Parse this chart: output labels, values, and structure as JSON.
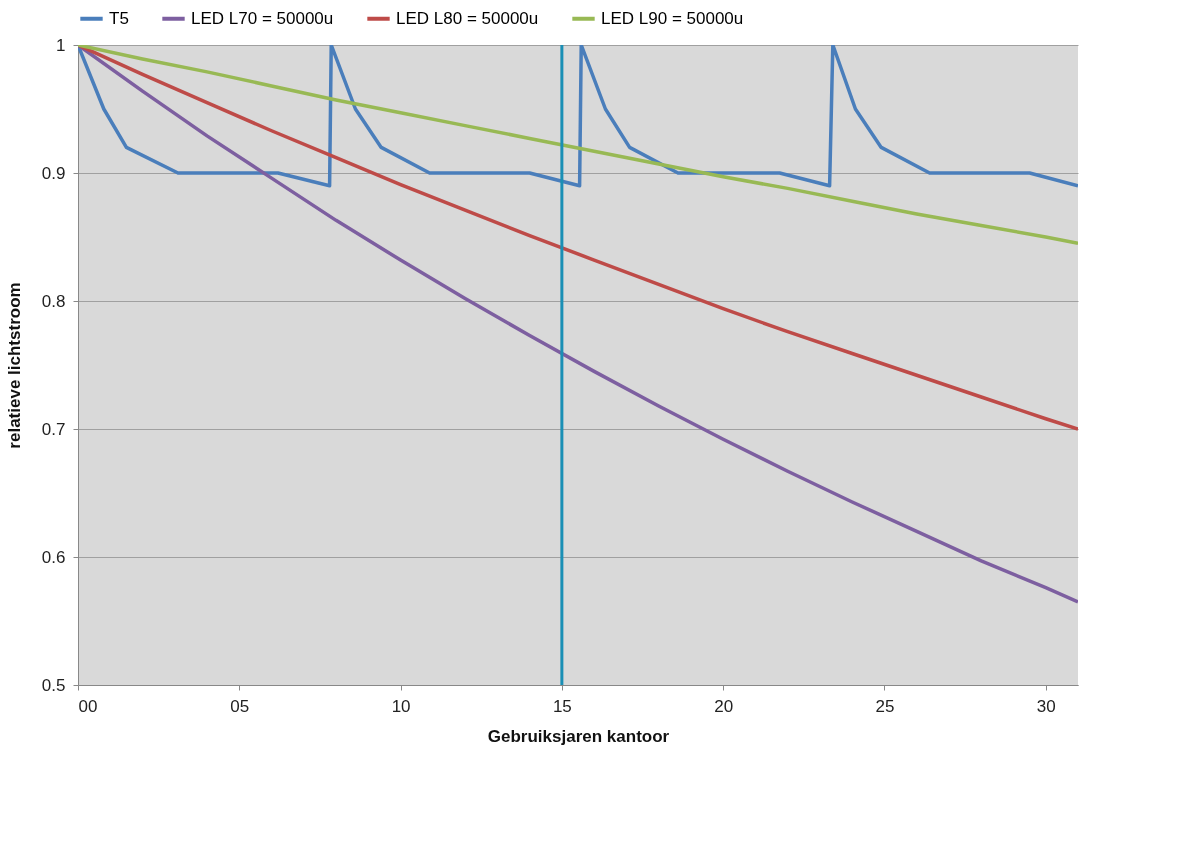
{
  "chart_data": {
    "type": "line",
    "xlabel": "Gebruiksjaren kantoor",
    "ylabel": "relatieve lichtstroom",
    "xlim": [
      0,
      31
    ],
    "ylim": [
      0.5,
      1
    ],
    "xticks": [
      {
        "value": 0,
        "label": "00"
      },
      {
        "value": 5,
        "label": "05"
      },
      10,
      15,
      20,
      25,
      30
    ],
    "yticks": [
      0.5,
      0.6,
      0.7,
      0.8,
      0.9,
      1
    ],
    "grid": "y",
    "legend": "top",
    "marker": "none",
    "line_style": "solid",
    "ref_lines": [
      {
        "axis": "x",
        "value": 15,
        "color": "#1a8fb5"
      }
    ],
    "series": [
      {
        "name": "T5",
        "color": "#4a7ebb",
        "x": [
          0,
          0.8,
          1.5,
          3.1,
          6.2,
          7.8,
          7.85,
          8.6,
          9.4,
          10.9,
          14.0,
          15.55,
          15.6,
          16.35,
          17.1,
          18.6,
          21.75,
          23.3,
          23.4,
          24.1,
          24.9,
          26.4,
          29.5,
          31
        ],
        "values": [
          1,
          0.95,
          0.92,
          0.9,
          0.9,
          0.89,
          1,
          0.95,
          0.92,
          0.9,
          0.9,
          0.89,
          1,
          0.95,
          0.92,
          0.9,
          0.9,
          0.89,
          1,
          0.95,
          0.92,
          0.9,
          0.9,
          0.89
        ]
      },
      {
        "name": "LED L70 = 50000u",
        "color": "#7d5fa0",
        "x": [
          0,
          2,
          4,
          6,
          8,
          10,
          12,
          14,
          16,
          18,
          20,
          22,
          24,
          26,
          28,
          30,
          31
        ],
        "values": [
          1,
          0.964,
          0.929,
          0.896,
          0.863,
          0.832,
          0.802,
          0.773,
          0.745,
          0.718,
          0.692,
          0.667,
          0.643,
          0.62,
          0.597,
          0.576,
          0.565
        ]
      },
      {
        "name": "LED L80 = 50000u",
        "color": "#be4b48",
        "x": [
          0,
          2,
          4,
          6,
          8,
          10,
          12,
          14,
          16,
          18,
          20,
          22,
          24,
          26,
          28,
          30,
          31
        ],
        "values": [
          1,
          0.977,
          0.955,
          0.933,
          0.912,
          0.891,
          0.871,
          0.851,
          0.832,
          0.813,
          0.794,
          0.776,
          0.759,
          0.742,
          0.725,
          0.708,
          0.7
        ]
      },
      {
        "name": "LED L90 = 50000u",
        "color": "#98b954",
        "x": [
          0,
          2,
          4,
          6,
          8,
          10,
          12,
          14,
          16,
          18,
          20,
          22,
          24,
          26,
          28,
          30,
          31
        ],
        "values": [
          1,
          0.989,
          0.979,
          0.968,
          0.957,
          0.947,
          0.937,
          0.927,
          0.917,
          0.907,
          0.897,
          0.888,
          0.878,
          0.868,
          0.859,
          0.85,
          0.845
        ]
      }
    ]
  }
}
